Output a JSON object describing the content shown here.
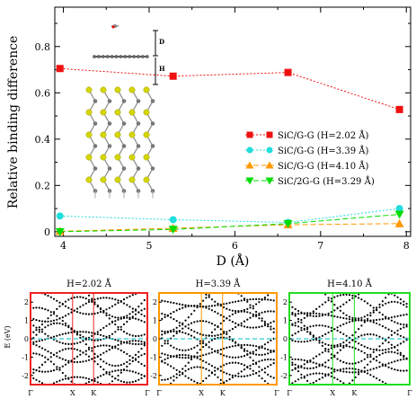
{
  "chart_data": [
    {
      "type": "line",
      "xlabel": "D (Å)",
      "ylabel": "Relative binding difference",
      "xlim": [
        3.9,
        8.05
      ],
      "ylim": [
        -0.02,
        0.97
      ],
      "xticks": [
        4,
        5,
        6,
        7,
        8
      ],
      "xtick_labels": [
        "4",
        "5",
        "6",
        "7",
        "8"
      ],
      "yticks": [
        0,
        0.2,
        0.4,
        0.6,
        0.8
      ],
      "ytick_labels": [
        "0",
        "0.2",
        "0.4",
        "0.6",
        "0.8"
      ],
      "legend_position": "right",
      "series": [
        {
          "name": "SiC/G-G (H=2.02 Å)",
          "color": "#ee1111",
          "marker": "square",
          "x": [
            3.96,
            5.28,
            6.62,
            7.92
          ],
          "y": [
            0.705,
            0.672,
            0.688,
            0.528
          ]
        },
        {
          "name": "SiC/G-G (H=3.39 Å)",
          "color": "#22dddd",
          "marker": "circle",
          "x": [
            3.96,
            5.28,
            6.62,
            7.92
          ],
          "y": [
            0.068,
            0.052,
            0.04,
            0.1
          ]
        },
        {
          "name": "SiC/G-G (H=4.10 Å)",
          "color": "#ff9900",
          "marker": "triangle-up",
          "x": [
            3.96,
            5.28,
            6.62,
            7.92
          ],
          "y": [
            0.002,
            0.015,
            0.03,
            0.035
          ]
        },
        {
          "name": "SiC/2G-G (H=3.29 Å)",
          "color": "#00dd00",
          "marker": "triangle-down",
          "x": [
            3.96,
            5.28,
            6.62,
            7.92
          ],
          "y": [
            0.0,
            0.01,
            0.035,
            0.075
          ]
        }
      ],
      "inset_labels": {
        "d": "D",
        "h": "H"
      }
    },
    {
      "type": "line",
      "panels": [
        {
          "title": "H=2.02 Å",
          "frame_color": "#ee2222"
        },
        {
          "title": "H=3.39 Å",
          "frame_color": "#ff9900"
        },
        {
          "title": "H=4.10 Å",
          "frame_color": "#22dd22"
        }
      ],
      "ylabel": "E (eV)",
      "ylim": [
        -2.5,
        2.5
      ],
      "yticks": [
        -2,
        -1,
        0,
        1,
        2
      ],
      "ytick_labels": [
        "-2",
        "-1",
        "0",
        "1",
        "2"
      ],
      "kpoint_labels": [
        "Γ",
        "X",
        "K",
        "Γ"
      ],
      "fermi_color": "#33cccc"
    }
  ]
}
